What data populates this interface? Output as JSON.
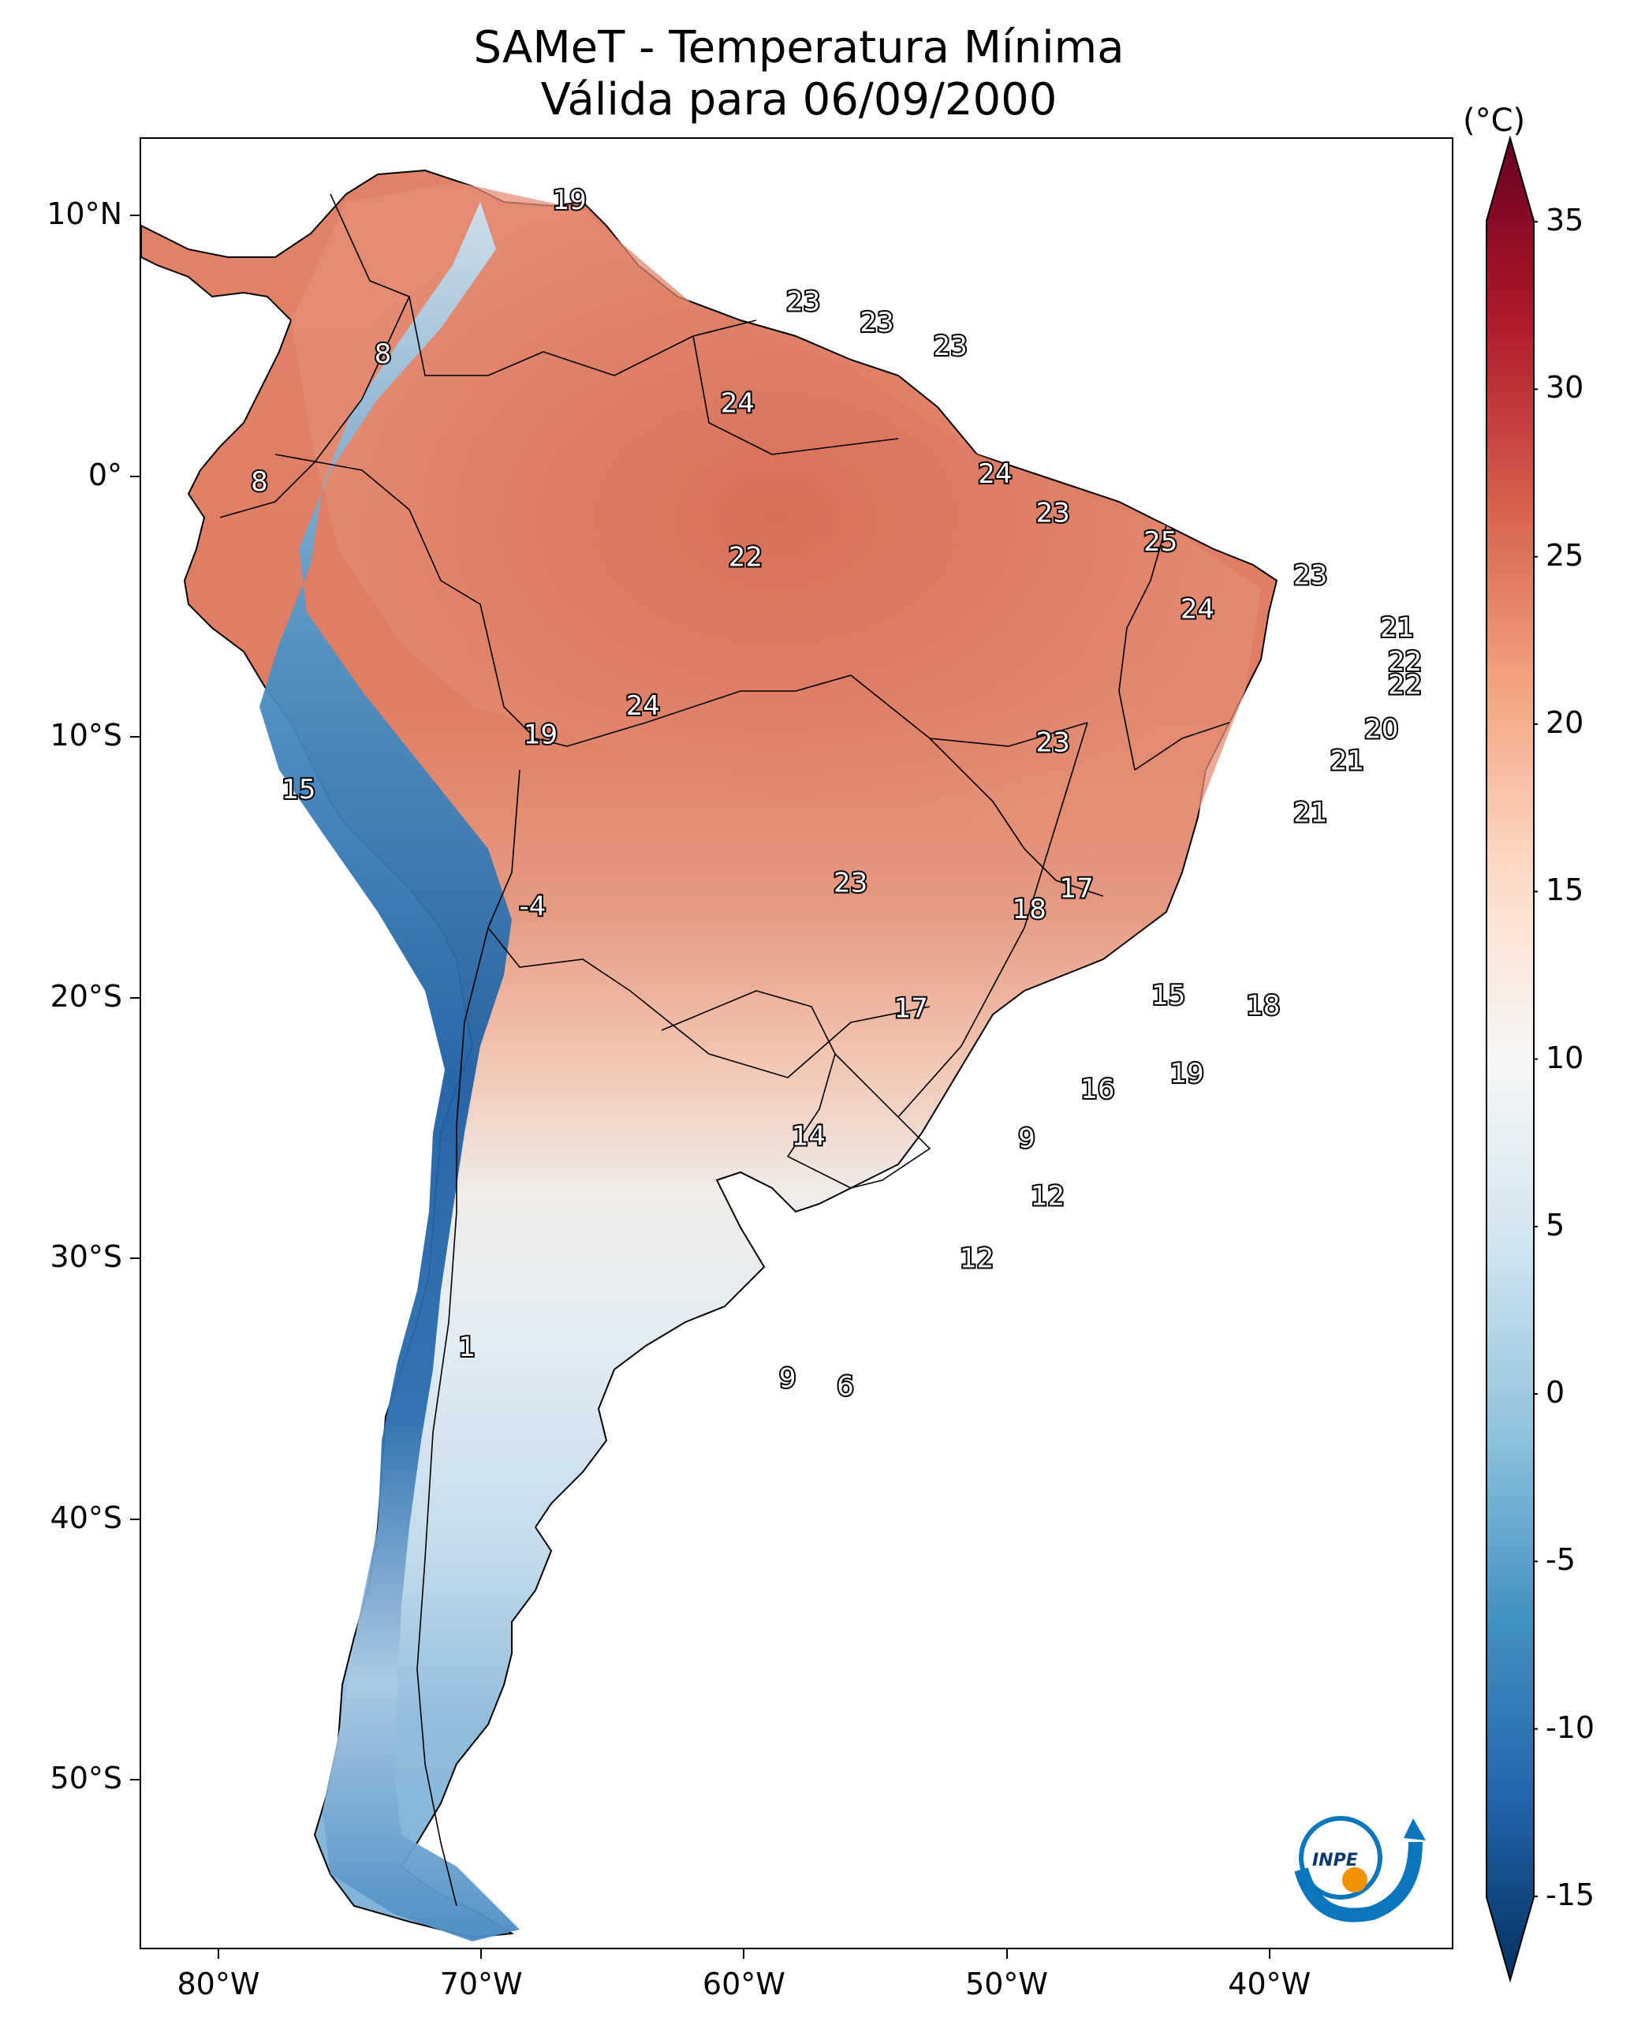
{
  "title": {
    "line1": "SAMeT - Temperatura Mínima",
    "line2": "Válida para 06/09/2000"
  },
  "map": {
    "projection": "PlateCarree",
    "lon_range": [
      -83,
      -33
    ],
    "lat_range": [
      -56.5,
      13
    ],
    "lon_ticks": [
      {
        "lon": -80,
        "label": "80°W"
      },
      {
        "lon": -70,
        "label": "70°W"
      },
      {
        "lon": -60,
        "label": "60°W"
      },
      {
        "lon": -50,
        "label": "50°W"
      },
      {
        "lon": -40,
        "label": "40°W"
      }
    ],
    "lat_ticks": [
      {
        "lat": 10,
        "label": "10°N"
      },
      {
        "lat": 0,
        "label": "0°"
      },
      {
        "lat": -10,
        "label": "10°S"
      },
      {
        "lat": -20,
        "label": "20°S"
      },
      {
        "lat": -30,
        "label": "30°S"
      },
      {
        "lat": -40,
        "label": "40°S"
      },
      {
        "lat": -50,
        "label": "50°S"
      }
    ],
    "station_values": [
      {
        "lon": -66.7,
        "lat": 10.6,
        "value": "19"
      },
      {
        "lon": -57.8,
        "lat": 6.7,
        "value": "23"
      },
      {
        "lon": -55.0,
        "lat": 5.9,
        "value": "23"
      },
      {
        "lon": -52.2,
        "lat": 5.0,
        "value": "23"
      },
      {
        "lon": -73.8,
        "lat": 4.7,
        "value": "8"
      },
      {
        "lon": -60.3,
        "lat": 2.8,
        "value": "24"
      },
      {
        "lon": -50.5,
        "lat": 0.1,
        "value": "24"
      },
      {
        "lon": -78.5,
        "lat": -0.2,
        "value": "8"
      },
      {
        "lon": -48.3,
        "lat": -1.4,
        "value": "23"
      },
      {
        "lon": -44.2,
        "lat": -2.5,
        "value": "25"
      },
      {
        "lon": -60.0,
        "lat": -3.1,
        "value": "22"
      },
      {
        "lon": -38.5,
        "lat": -3.8,
        "value": "23"
      },
      {
        "lon": -42.8,
        "lat": -5.1,
        "value": "24"
      },
      {
        "lon": -35.2,
        "lat": -5.8,
        "value": "21"
      },
      {
        "lon": -34.9,
        "lat": -7.1,
        "value": "22"
      },
      {
        "lon": -34.9,
        "lat": -8.0,
        "value": "22"
      },
      {
        "lon": -63.9,
        "lat": -8.8,
        "value": "24"
      },
      {
        "lon": -35.8,
        "lat": -9.7,
        "value": "20"
      },
      {
        "lon": -67.8,
        "lat": -9.9,
        "value": "19"
      },
      {
        "lon": -48.3,
        "lat": -10.2,
        "value": "23"
      },
      {
        "lon": -37.1,
        "lat": -10.9,
        "value": "21"
      },
      {
        "lon": -77.0,
        "lat": -12.0,
        "value": "15"
      },
      {
        "lon": -38.5,
        "lat": -12.9,
        "value": "21"
      },
      {
        "lon": -47.4,
        "lat": -15.8,
        "value": "17"
      },
      {
        "lon": -56.0,
        "lat": -15.6,
        "value": "23"
      },
      {
        "lon": -49.2,
        "lat": -16.6,
        "value": "18"
      },
      {
        "lon": -68.1,
        "lat": -16.5,
        "value": "-4"
      },
      {
        "lon": -43.9,
        "lat": -19.9,
        "value": "15"
      },
      {
        "lon": -53.7,
        "lat": -20.4,
        "value": "17"
      },
      {
        "lon": -40.3,
        "lat": -20.3,
        "value": "18"
      },
      {
        "lon": -43.2,
        "lat": -22.9,
        "value": "19"
      },
      {
        "lon": -46.6,
        "lat": -23.5,
        "value": "16"
      },
      {
        "lon": -49.3,
        "lat": -25.4,
        "value": "9"
      },
      {
        "lon": -57.6,
        "lat": -25.3,
        "value": "14"
      },
      {
        "lon": -48.5,
        "lat": -27.6,
        "value": "12"
      },
      {
        "lon": -51.2,
        "lat": -30.0,
        "value": "12"
      },
      {
        "lon": -70.6,
        "lat": -33.4,
        "value": "1"
      },
      {
        "lon": -58.4,
        "lat": -34.6,
        "value": "9"
      },
      {
        "lon": -56.2,
        "lat": -34.9,
        "value": "6"
      }
    ]
  },
  "colorbar": {
    "unit": "(°C)",
    "min": -17.5,
    "max": 37.5,
    "tick_values": [
      35,
      30,
      25,
      20,
      15,
      10,
      5,
      0,
      -5,
      -10,
      -15
    ],
    "tick_labels": [
      "35",
      "30",
      "25",
      "20",
      "15",
      "10",
      "5",
      "0",
      "-5",
      "-10",
      "-15"
    ],
    "colormap": "RdBu_r",
    "colors": [
      "#053061",
      "#2166ac",
      "#4393c3",
      "#92c5de",
      "#d1e5f0",
      "#f7f7f7",
      "#fddbc7",
      "#f4a582",
      "#d6604d",
      "#b2182b",
      "#67001f"
    ]
  },
  "logo": {
    "text": "INPE",
    "accent_color": "#f39200",
    "arc_color": "#0a76be"
  }
}
